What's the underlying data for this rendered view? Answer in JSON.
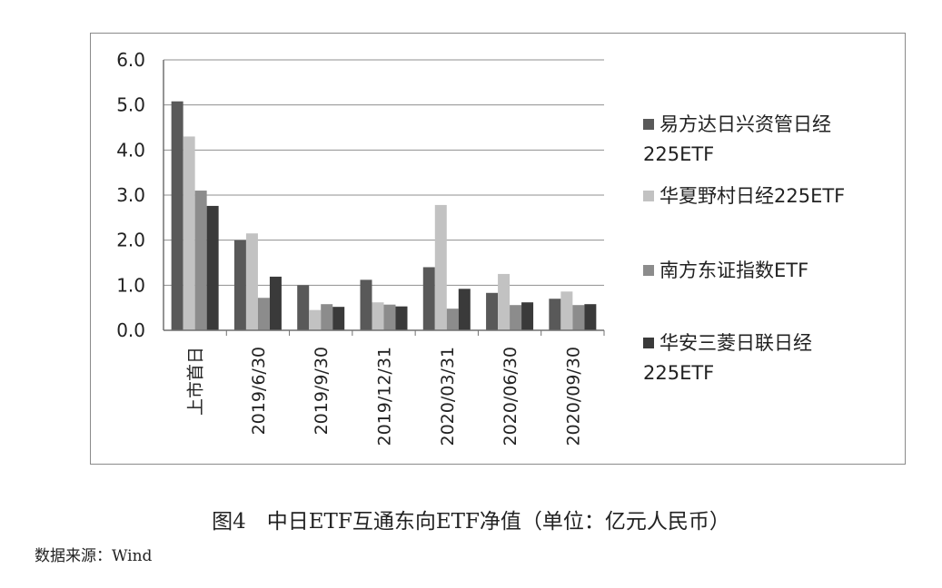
{
  "chart_data": {
    "type": "bar",
    "title": "",
    "xlabel": "",
    "ylabel": "",
    "ylim": [
      0,
      6.0
    ],
    "yticks": [
      "0.0",
      "1.0",
      "2.0",
      "3.0",
      "4.0",
      "5.0",
      "6.0"
    ],
    "grid": true,
    "legend_position": "right",
    "categories": [
      "上市首日",
      "2019/6/30",
      "2019/9/30",
      "2019/12/31",
      "2020/03/31",
      "2020/06/30",
      "2020/09/30"
    ],
    "series": [
      {
        "name": "易方达日兴资管日经225ETF",
        "color": "#595959",
        "values": [
          5.08,
          2.0,
          1.0,
          1.12,
          1.4,
          0.83,
          0.7
        ]
      },
      {
        "name": "华夏野村日经225ETF",
        "color": "#c2c2c2",
        "values": [
          4.3,
          2.15,
          0.45,
          0.62,
          2.78,
          1.25,
          0.86
        ]
      },
      {
        "name": "南方东证指数ETF",
        "color": "#8c8c8c",
        "values": [
          3.1,
          0.72,
          0.58,
          0.57,
          0.48,
          0.56,
          0.56
        ]
      },
      {
        "name": "华安三菱日联日经225ETF",
        "color": "#3a3a3a",
        "values": [
          2.76,
          1.19,
          0.52,
          0.53,
          0.92,
          0.62,
          0.58
        ]
      }
    ]
  },
  "caption": "图4　中日ETF互通东向ETF净值（单位：亿元人民币）",
  "source": "数据来源：Wind"
}
